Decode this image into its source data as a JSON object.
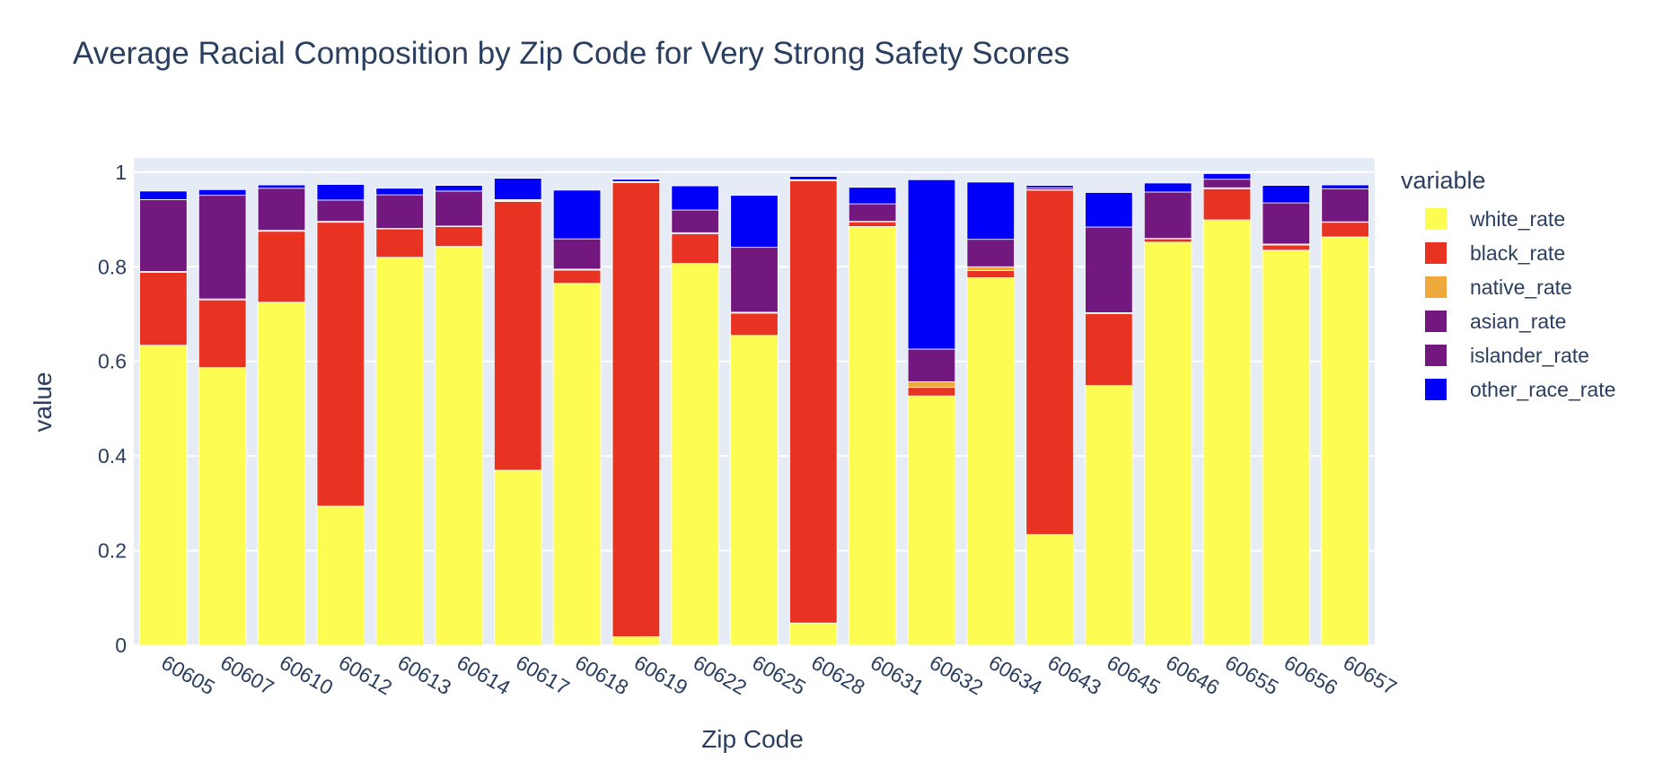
{
  "chart_data": {
    "type": "bar",
    "barmode": "stack",
    "title": "Average Racial Composition by Zip Code for Very Strong Safety Scores",
    "xlabel": "Zip Code",
    "ylabel": "value",
    "ylim": [
      0,
      1.03
    ],
    "yticks": [
      0,
      0.2,
      0.4,
      0.6,
      0.8,
      1
    ],
    "ytick_labels": [
      "0",
      "0.2",
      "0.4",
      "0.6",
      "0.8",
      "1"
    ],
    "grid": true,
    "legend_title": "variable",
    "legend_position": "right",
    "categories": [
      "60605",
      "60607",
      "60610",
      "60612",
      "60613",
      "60614",
      "60617",
      "60618",
      "60619",
      "60622",
      "60625",
      "60628",
      "60631",
      "60632",
      "60634",
      "60643",
      "60645",
      "60646",
      "60655",
      "60656",
      "60657"
    ],
    "series": [
      {
        "name": "white_rate",
        "color": "#FDFC53",
        "values": [
          0.634,
          0.587,
          0.725,
          0.294,
          0.82,
          0.843,
          0.37,
          0.765,
          0.018,
          0.807,
          0.655,
          0.047,
          0.885,
          0.527,
          0.777,
          0.234,
          0.549,
          0.852,
          0.899,
          0.835,
          0.863
        ]
      },
      {
        "name": "black_rate",
        "color": "#E83323",
        "values": [
          0.154,
          0.143,
          0.15,
          0.6,
          0.06,
          0.042,
          0.568,
          0.028,
          0.96,
          0.063,
          0.047,
          0.935,
          0.01,
          0.018,
          0.015,
          0.728,
          0.152,
          0.007,
          0.066,
          0.011,
          0.031
        ]
      },
      {
        "name": "native_rate",
        "color": "#EFA83A",
        "values": [
          0.002,
          0.002,
          0.002,
          0.002,
          0.001,
          0.001,
          0.002,
          0.002,
          0.001,
          0.002,
          0.002,
          0.001,
          0.001,
          0.012,
          0.008,
          0.001,
          0.002,
          0.001,
          0.002,
          0.002,
          0.001
        ]
      },
      {
        "name": "asian_rate",
        "color": "#73187F",
        "values": [
          0.152,
          0.219,
          0.089,
          0.045,
          0.071,
          0.074,
          0.002,
          0.064,
          0.001,
          0.048,
          0.137,
          0.001,
          0.037,
          0.069,
          0.058,
          0.004,
          0.181,
          0.098,
          0.018,
          0.087,
          0.07
        ]
      },
      {
        "name": "islander_rate",
        "color": "#73187F",
        "values": [
          0.0,
          0.0,
          0.0,
          0.0,
          0.0,
          0.0,
          0.0,
          0.0,
          0.0,
          0.0,
          0.0,
          0.0,
          0.0,
          0.0,
          0.0,
          0.0,
          0.0,
          0.0,
          0.0,
          0.0,
          0.0
        ]
      },
      {
        "name": "other_race_rate",
        "color": "#0000FA",
        "values": [
          0.018,
          0.012,
          0.007,
          0.033,
          0.014,
          0.012,
          0.045,
          0.103,
          0.005,
          0.051,
          0.11,
          0.007,
          0.035,
          0.358,
          0.121,
          0.005,
          0.073,
          0.019,
          0.012,
          0.037,
          0.008
        ]
      }
    ]
  }
}
